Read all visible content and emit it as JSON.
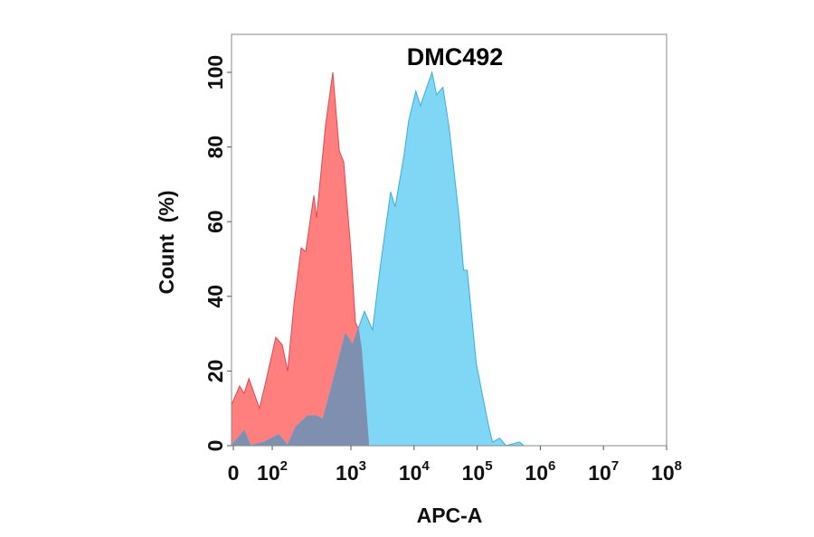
{
  "chart_data": {
    "type": "area",
    "title": "DMC492",
    "xlabel": "APC-A",
    "ylabel": "Count  (%)",
    "x_scale": "biexponential",
    "xlim": [
      0,
      100000000
    ],
    "ylim": [
      0,
      110
    ],
    "grid": false,
    "legend": "none",
    "x_ticks": [
      {
        "value": 0,
        "base": "0",
        "exp": ""
      },
      {
        "value": 100,
        "base": "10",
        "exp": "2"
      },
      {
        "value": 1000,
        "base": "10",
        "exp": "3"
      },
      {
        "value": 10000,
        "base": "10",
        "exp": "4"
      },
      {
        "value": 100000,
        "base": "10",
        "exp": "5"
      },
      {
        "value": 1000000,
        "base": "10",
        "exp": "6"
      },
      {
        "value": 10000000,
        "base": "10",
        "exp": "7"
      },
      {
        "value": 100000000,
        "base": "10",
        "exp": "8"
      }
    ],
    "y_ticks": [
      "0",
      "20",
      "40",
      "60",
      "80",
      "100"
    ],
    "y_tick_values": [
      0,
      20,
      40,
      60,
      80,
      100
    ],
    "series": [
      {
        "color": "#ff7f7f",
        "stroke": "#e0474f",
        "points": [
          [
            0,
            11
          ],
          [
            16,
            16
          ],
          [
            28,
            14
          ],
          [
            40,
            18
          ],
          [
            67,
            10
          ],
          [
            81,
            16
          ],
          [
            111,
            29
          ],
          [
            134,
            27
          ],
          [
            157,
            20
          ],
          [
            189,
            38
          ],
          [
            233,
            53
          ],
          [
            266,
            52
          ],
          [
            338,
            67
          ],
          [
            366,
            61
          ],
          [
            476,
            86
          ],
          [
            589,
            100
          ],
          [
            710,
            79
          ],
          [
            810,
            76
          ],
          [
            1000,
            52
          ],
          [
            1179,
            33
          ],
          [
            1345,
            31
          ],
          [
            1484,
            26
          ],
          [
            1931,
            1
          ]
        ]
      },
      {
        "color": "#7fd6f5",
        "stroke": "#3aaedc",
        "points": [
          [
            0,
            0
          ],
          [
            28,
            4
          ],
          [
            44,
            0
          ],
          [
            81,
            1
          ],
          [
            120,
            3
          ],
          [
            157,
            0
          ],
          [
            199,
            5
          ],
          [
            281,
            8
          ],
          [
            366,
            8
          ],
          [
            440,
            7
          ],
          [
            541,
            14
          ],
          [
            853,
            30
          ],
          [
            1068,
            27
          ],
          [
            1344,
            32
          ],
          [
            1638,
            36
          ],
          [
            2203,
            31
          ],
          [
            2865,
            47
          ],
          [
            4253,
            68
          ],
          [
            5012,
            64
          ],
          [
            6966,
            78
          ],
          [
            8204,
            87
          ],
          [
            10680,
            95
          ],
          [
            12589,
            91
          ],
          [
            15849,
            96
          ],
          [
            19307,
            100
          ],
          [
            22760,
            94
          ],
          [
            28650,
            96
          ],
          [
            36060,
            85
          ],
          [
            51790,
            61
          ],
          [
            61050,
            47
          ],
          [
            69660,
            47
          ],
          [
            96830,
            22
          ],
          [
            148400,
            6
          ],
          [
            174900,
            1
          ],
          [
            227600,
            2
          ],
          [
            286500,
            0
          ],
          [
            469000,
            1
          ],
          [
            553000,
            0
          ]
        ]
      }
    ],
    "overlap_color": "#7f8fb0"
  }
}
